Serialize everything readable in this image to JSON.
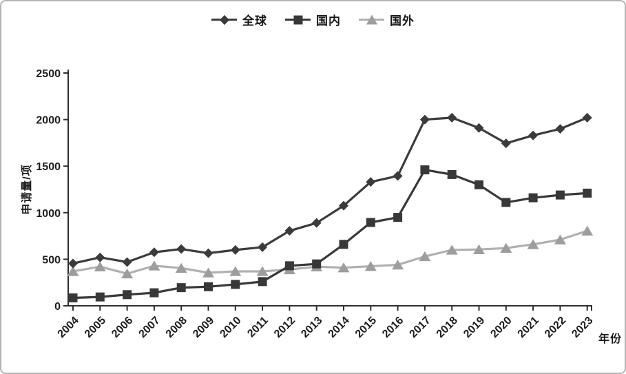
{
  "chart_data": {
    "type": "line",
    "title": "",
    "xlabel": "年份",
    "ylabel": "申请量/项",
    "ylim": [
      0,
      2500
    ],
    "y_ticks": [
      0,
      500,
      1000,
      1500,
      2000,
      2500
    ],
    "grid": false,
    "legend_position": "top",
    "categories": [
      "2004",
      "2005",
      "2006",
      "2007",
      "2008",
      "2009",
      "2010",
      "2011",
      "2012",
      "2013",
      "2014",
      "2015",
      "2016",
      "2017",
      "2018",
      "2019",
      "2020",
      "2021",
      "2022",
      "2023"
    ],
    "series": [
      {
        "name": "全球",
        "marker": "diamond",
        "color": "#3b3b3b",
        "values": [
          455,
          520,
          470,
          575,
          610,
          565,
          600,
          630,
          805,
          890,
          1075,
          1330,
          1395,
          2000,
          2020,
          1910,
          1745,
          1830,
          1900,
          2020
        ]
      },
      {
        "name": "国内",
        "marker": "square",
        "color": "#383838",
        "values": [
          85,
          95,
          120,
          140,
          195,
          205,
          230,
          260,
          430,
          450,
          660,
          895,
          950,
          1460,
          1410,
          1300,
          1110,
          1160,
          1190,
          1210
        ]
      },
      {
        "name": "国外",
        "marker": "triangle",
        "color": "#9d9d9d",
        "line_color": "#b0b0b0",
        "values": [
          370,
          420,
          345,
          430,
          405,
          355,
          370,
          370,
          390,
          420,
          410,
          425,
          440,
          530,
          600,
          605,
          620,
          660,
          710,
          805
        ]
      }
    ]
  }
}
